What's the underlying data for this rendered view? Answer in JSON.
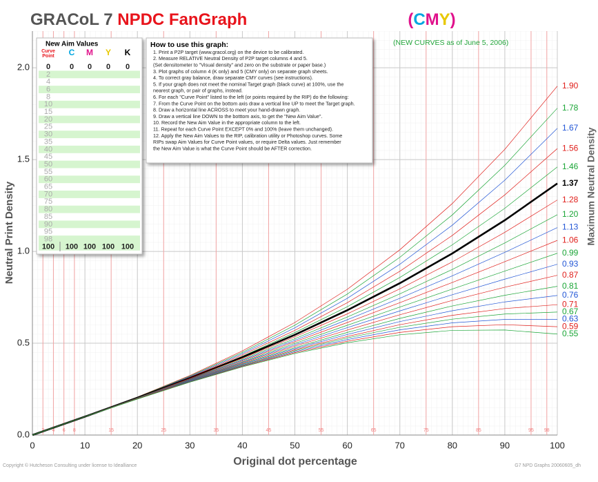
{
  "chart_data": {
    "type": "line",
    "title_parts": [
      "GRACoL 7",
      "NPDC FanGraph"
    ],
    "subtitle_parts": [
      "(",
      "C",
      "M",
      "Y",
      ")"
    ],
    "note": "(NEW CURVES as of June 5, 2006)",
    "x_label": "Original dot percentage",
    "y_label": "Neutral Print Density",
    "y2_label": "Maximum Neutral Density",
    "footer_left": "Copyright © Hutcheson Consulting under license to Idealliance",
    "footer_right": "G7 NPD Graphs 20060605_dh",
    "xlim": [
      0,
      100
    ],
    "ylim": [
      0,
      2.2
    ],
    "xticks": [
      0,
      10,
      20,
      30,
      40,
      50,
      60,
      70,
      80,
      90,
      100
    ],
    "yticks": [
      {
        "value": 0,
        "label": "0.0"
      },
      {
        "value": 0.5,
        "label": "0.5"
      },
      {
        "value": 1,
        "label": "1.0"
      },
      {
        "value": 1.5,
        "label": "1.5"
      },
      {
        "value": 2,
        "label": "2.0"
      }
    ],
    "grid": true,
    "curve_points": [
      2,
      4,
      6,
      8,
      15,
      25,
      35,
      45,
      55,
      65,
      75,
      85,
      95,
      98
    ],
    "x": [
      0,
      10,
      20,
      30,
      40,
      50,
      60,
      70,
      80,
      90,
      100
    ],
    "series": [
      {
        "name": "1.90",
        "color": "#e0201c",
        "values": [
          0,
          0.101,
          0.207,
          0.324,
          0.458,
          0.613,
          0.794,
          1.009,
          1.261,
          1.556,
          1.9
        ]
      },
      {
        "name": "1.78",
        "color": "#1aa536",
        "values": [
          0,
          0.101,
          0.206,
          0.321,
          0.45,
          0.598,
          0.768,
          0.968,
          1.199,
          1.469,
          1.78
        ]
      },
      {
        "name": "1.67",
        "color": "#2256d6",
        "values": [
          0,
          0.101,
          0.205,
          0.318,
          0.443,
          0.584,
          0.745,
          0.93,
          1.143,
          1.388,
          1.67
        ]
      },
      {
        "name": "1.56",
        "color": "#e0201c",
        "values": [
          0,
          0.101,
          0.204,
          0.315,
          0.436,
          0.57,
          0.721,
          0.892,
          1.087,
          1.308,
          1.56
        ]
      },
      {
        "name": "1.46",
        "color": "#1aa536",
        "values": [
          0,
          0.1,
          0.204,
          0.312,
          0.429,
          0.558,
          0.699,
          0.858,
          1.036,
          1.235,
          1.46
        ]
      },
      {
        "name": "1.37",
        "color": "#000000",
        "values": [
          0,
          0.1,
          0.203,
          0.31,
          0.424,
          0.546,
          0.68,
          0.827,
          0.989,
          1.17,
          1.37
        ]
      },
      {
        "name": "1.28",
        "color": "#e0201c",
        "values": [
          0,
          0.1,
          0.202,
          0.308,
          0.418,
          0.535,
          0.66,
          0.796,
          0.943,
          1.104,
          1.28
        ]
      },
      {
        "name": "1.20",
        "color": "#1aa536",
        "values": [
          0,
          0.1,
          0.202,
          0.305,
          0.413,
          0.525,
          0.643,
          0.769,
          0.902,
          1.046,
          1.2
        ]
      },
      {
        "name": "1.13",
        "color": "#2256d6",
        "values": [
          0,
          0.1,
          0.201,
          0.304,
          0.408,
          0.516,
          0.628,
          0.745,
          0.867,
          0.995,
          1.13
        ]
      },
      {
        "name": "1.06",
        "color": "#e0201c",
        "values": [
          0,
          0.1,
          0.2,
          0.302,
          0.404,
          0.508,
          0.613,
          0.721,
          0.831,
          0.944,
          1.06
        ]
      },
      {
        "name": "0.99",
        "color": "#1aa536",
        "values": [
          0,
          0.1,
          0.2,
          0.3,
          0.399,
          0.499,
          0.598,
          0.697,
          0.795,
          0.893,
          0.99
        ]
      },
      {
        "name": "0.93",
        "color": "#2256d6",
        "values": [
          0,
          0.1,
          0.199,
          0.298,
          0.396,
          0.491,
          0.585,
          0.676,
          0.764,
          0.849,
          0.93
        ]
      },
      {
        "name": "0.87",
        "color": "#e0201c",
        "values": [
          0,
          0.1,
          0.199,
          0.296,
          0.392,
          0.484,
          0.572,
          0.655,
          0.733,
          0.805,
          0.87
        ]
      },
      {
        "name": "0.81",
        "color": "#1aa536",
        "values": [
          0,
          0.1,
          0.198,
          0.295,
          0.388,
          0.476,
          0.559,
          0.635,
          0.703,
          0.761,
          0.81
        ]
      },
      {
        "name": "0.76",
        "color": "#2256d6",
        "values": [
          0,
          0.1,
          0.198,
          0.294,
          0.385,
          0.47,
          0.548,
          0.618,
          0.677,
          0.725,
          0.76
        ]
      },
      {
        "name": "0.71",
        "color": "#e0201c",
        "values": [
          0,
          0.1,
          0.198,
          0.292,
          0.381,
          0.464,
          0.537,
          0.601,
          0.652,
          0.689,
          0.71
        ]
      },
      {
        "name": "0.67",
        "color": "#1aa536",
        "values": [
          0,
          0.1,
          0.197,
          0.291,
          0.379,
          0.459,
          0.529,
          0.587,
          0.631,
          0.659,
          0.67
        ]
      },
      {
        "name": "0.63",
        "color": "#2256d6",
        "values": [
          0,
          0.1,
          0.197,
          0.29,
          0.376,
          0.454,
          0.52,
          0.573,
          0.611,
          0.63,
          0.63
        ]
      },
      {
        "name": "0.59",
        "color": "#e0201c",
        "values": [
          0,
          0.1,
          0.197,
          0.289,
          0.374,
          0.449,
          0.511,
          0.559,
          0.59,
          0.601,
          0.59
        ]
      },
      {
        "name": "0.55",
        "color": "#1aa536",
        "values": [
          0,
          0.1,
          0.196,
          0.288,
          0.371,
          0.444,
          0.503,
          0.546,
          0.57,
          0.572,
          0.55
        ]
      }
    ],
    "aim_table": {
      "title": "New Aim Values",
      "point_header": [
        "Curve",
        "Point"
      ],
      "ink_headers": [
        "C",
        "M",
        "Y",
        "K"
      ],
      "ink_colors": [
        "#00a6e0",
        "#e0128c",
        "#e8c800",
        "#000000"
      ],
      "rows": [
        [
          0,
          0,
          0,
          0,
          0
        ],
        [
          2
        ],
        [
          4
        ],
        [
          6
        ],
        [
          8
        ],
        [
          10
        ],
        [
          15
        ],
        [
          20
        ],
        [
          25
        ],
        [
          30
        ],
        [
          35
        ],
        [
          40
        ],
        [
          45
        ],
        [
          50
        ],
        [
          55
        ],
        [
          60
        ],
        [
          65
        ],
        [
          70
        ],
        [
          75
        ],
        [
          80
        ],
        [
          85
        ],
        [
          90
        ],
        [
          95
        ],
        [
          98
        ],
        [
          100,
          100,
          100,
          100,
          100
        ]
      ]
    },
    "instructions": {
      "title": "How to use this graph:",
      "lines": [
        "1.  Print a P2P target (www.gracol.org) on the device to be calibrated.",
        "2.  Measure RELATIVE Neutral Density of P2P target columns 4 and 5.",
        "     (Set densitometer to \"Visual density\" and zero on the substrate or paper base.)",
        "3.  Plot graphs of column 4 (K only) and 5 (CMY only) on separate graph sheets.",
        "4.  To correct gray balance, draw separate CMY curves (see instructions).",
        "5.  If your graph does not meet the nominal Target graph (black curve) at 100%, use the",
        "     nearest graph, or pair of graphs, instead.",
        "6.  For each \"Curve Point\" listed to the left (or points required by the RIP) do the following:",
        "7.  From the Curve Point on the bottom axis draw a vertical line UP to meet the Target graph.",
        "8.  Draw a horizontal line ACROSS to meet your hand-drawn graph.",
        "9.  Draw a vertical line DOWN to the botttom axis, to get the \"New Aim Value\".",
        "10. Record the New Aim Value in the appropriate column to the left.",
        "11. Repeat for each Curve Point EXCEPT 0% and 100% (leave them unchanged).",
        "12. Apply the New Aim Values to the RIP, calibration utility or Photoshop curves.  Some",
        "     RIPs swap Aim Values for Curve Point values, or require Delta values.  Just remember",
        "     the New Aim Value is what the Curve Point should be AFTER correction."
      ]
    }
  }
}
